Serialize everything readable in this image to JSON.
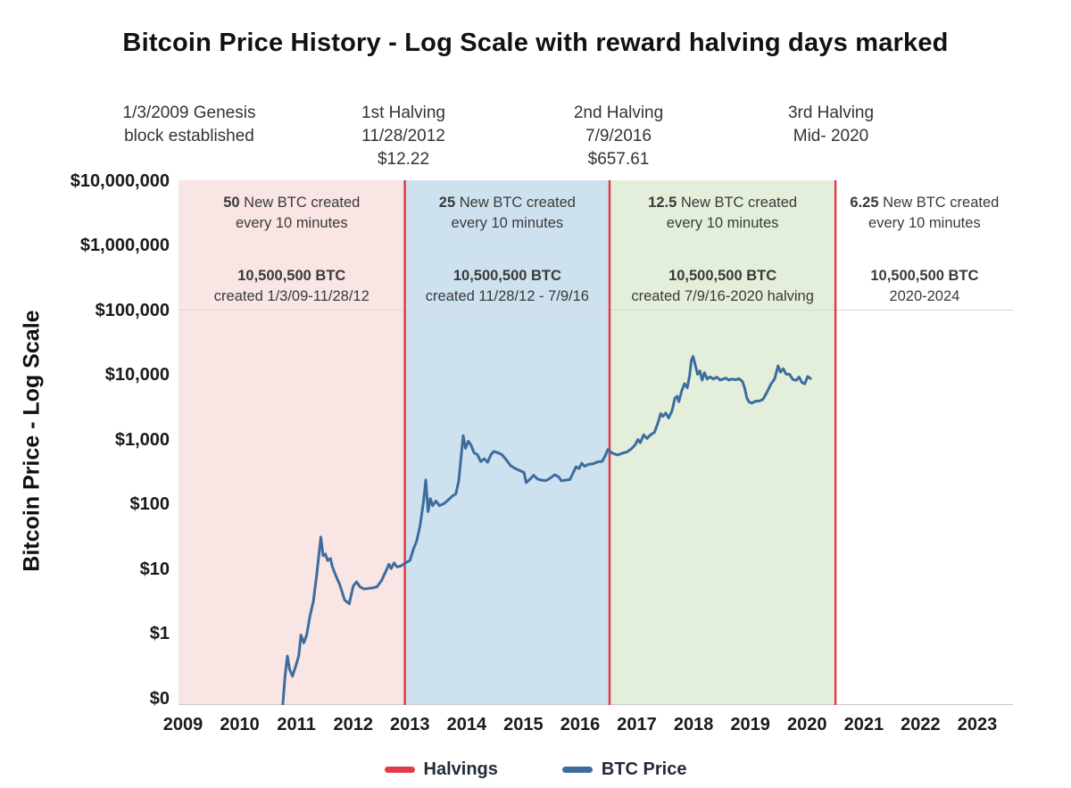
{
  "title": "Bitcoin Price History - Log Scale with reward halving days marked",
  "y_axis_title": "Bitcoin Price - Log Scale",
  "annotations": [
    {
      "text": "1/3/2009 Genesis\nblock established"
    },
    {
      "text": "1st Halving\n11/28/2012\n$12.22"
    },
    {
      "text": "2nd Halving\n7/9/2016\n$657.61"
    },
    {
      "text": "3rd Halving\nMid- 2020"
    }
  ],
  "legend": [
    {
      "label": "Halvings",
      "color": "#e23b48",
      "type": "line"
    },
    {
      "label": "BTC Price",
      "color": "#3d6d9e",
      "type": "line"
    }
  ],
  "chart_data": {
    "type": "line",
    "title": "Bitcoin Price History - Log Scale with reward halving days marked",
    "xlabel": "",
    "ylabel": "Bitcoin Price - Log Scale",
    "y_scale": "log",
    "x_range": [
      2008.92,
      2023.63
    ],
    "y_range": [
      0.1,
      10000000
    ],
    "grid": "minimal",
    "legend_position": "bottom",
    "x_ticks": [
      2009,
      2010,
      2011,
      2012,
      2013,
      2014,
      2015,
      2016,
      2017,
      2018,
      2019,
      2020,
      2021,
      2022,
      2023
    ],
    "y_ticks": [
      {
        "label": "$10,000,000",
        "value": 10000000
      },
      {
        "label": "$1,000,000",
        "value": 1000000
      },
      {
        "label": "$100,000",
        "value": 100000
      },
      {
        "label": "$10,000",
        "value": 10000
      },
      {
        "label": "$1,000",
        "value": 1000
      },
      {
        "label": "$100",
        "value": 100
      },
      {
        "label": "$10",
        "value": 10
      },
      {
        "label": "$1",
        "value": 1
      },
      {
        "label": "$0",
        "value": 0.1
      }
    ],
    "halving_color": "#e23b48",
    "halvings": [
      {
        "name": "1st Halving",
        "date": "11/28/2012",
        "year": 2012.91,
        "price": "$12.22"
      },
      {
        "name": "2nd Halving",
        "date": "7/9/2016",
        "year": 2016.52,
        "price": "$657.61"
      },
      {
        "name": "3rd Halving",
        "date": "Mid- 2020",
        "year": 2020.5,
        "price": ""
      }
    ],
    "regions": [
      {
        "amount": "50",
        "supply_line1": "New BTC created",
        "supply_line2": "every 10 minutes",
        "total": "10,500,500 BTC",
        "period": "created 1/3/09-11/28/12",
        "fill": "#f8e5e4",
        "start_year": 2008.92,
        "end_year": 2012.91
      },
      {
        "amount": "25",
        "supply_line1": "New BTC created",
        "supply_line2": "every 10 minutes",
        "total": "10,500,500 BTC",
        "period": "created 11/28/12 - 7/9/16",
        "fill": "#cee1ef",
        "start_year": 2012.91,
        "end_year": 2016.52
      },
      {
        "amount": "12.5",
        "supply_line1": "New BTC created",
        "supply_line2": "every 10 minutes",
        "total": "10,500,500 BTC",
        "period": "created 7/9/16-2020 halving",
        "fill": "#e3efdb",
        "start_year": 2016.52,
        "end_year": 2020.5
      },
      {
        "amount": "6.25",
        "supply_line1": "New BTC created",
        "supply_line2": "every 10 minutes",
        "total": "10,500,500 BTC",
        "period": "2020-2024",
        "fill": "#ffffff",
        "start_year": 2020.5,
        "end_year": 2023.63
      }
    ],
    "series": [
      {
        "name": "BTC Price",
        "color": "#3d6d9e",
        "points": [
          [
            2010.76,
            0.08
          ],
          [
            2010.8,
            0.22
          ],
          [
            2010.84,
            0.45
          ],
          [
            2010.88,
            0.28
          ],
          [
            2010.93,
            0.22
          ],
          [
            2010.98,
            0.3
          ],
          [
            2011.04,
            0.45
          ],
          [
            2011.08,
            0.95
          ],
          [
            2011.13,
            0.72
          ],
          [
            2011.18,
            0.95
          ],
          [
            2011.24,
            1.9
          ],
          [
            2011.3,
            3.2
          ],
          [
            2011.36,
            8.5
          ],
          [
            2011.43,
            31
          ],
          [
            2011.47,
            16
          ],
          [
            2011.51,
            17
          ],
          [
            2011.55,
            13.5
          ],
          [
            2011.6,
            14.5
          ],
          [
            2011.63,
            11
          ],
          [
            2011.69,
            8
          ],
          [
            2011.76,
            5.8
          ],
          [
            2011.85,
            3.3
          ],
          [
            2011.93,
            2.9
          ],
          [
            2012.0,
            5.4
          ],
          [
            2012.06,
            6.3
          ],
          [
            2012.12,
            5.3
          ],
          [
            2012.19,
            4.9
          ],
          [
            2012.27,
            5
          ],
          [
            2012.35,
            5.1
          ],
          [
            2012.42,
            5.3
          ],
          [
            2012.5,
            6.6
          ],
          [
            2012.58,
            9.4
          ],
          [
            2012.63,
            11.8
          ],
          [
            2012.67,
            10.1
          ],
          [
            2012.72,
            12.4
          ],
          [
            2012.77,
            10.8
          ],
          [
            2012.83,
            11
          ],
          [
            2012.91,
            12.22
          ],
          [
            2013.0,
            13.5
          ],
          [
            2013.06,
            20
          ],
          [
            2013.12,
            27
          ],
          [
            2013.18,
            47
          ],
          [
            2013.24,
            110
          ],
          [
            2013.28,
            237
          ],
          [
            2013.32,
            77
          ],
          [
            2013.36,
            122
          ],
          [
            2013.4,
            95
          ],
          [
            2013.46,
            112
          ],
          [
            2013.52,
            95
          ],
          [
            2013.6,
            102
          ],
          [
            2013.67,
            115
          ],
          [
            2013.74,
            132
          ],
          [
            2013.81,
            145
          ],
          [
            2013.86,
            230
          ],
          [
            2013.9,
            520
          ],
          [
            2013.94,
            1150
          ],
          [
            2013.98,
            730
          ],
          [
            2014.03,
            940
          ],
          [
            2014.08,
            810
          ],
          [
            2014.13,
            625
          ],
          [
            2014.19,
            585
          ],
          [
            2014.25,
            455
          ],
          [
            2014.31,
            505
          ],
          [
            2014.37,
            445
          ],
          [
            2014.43,
            590
          ],
          [
            2014.48,
            655
          ],
          [
            2014.55,
            625
          ],
          [
            2014.62,
            585
          ],
          [
            2014.7,
            485
          ],
          [
            2014.78,
            390
          ],
          [
            2014.86,
            355
          ],
          [
            2014.94,
            330
          ],
          [
            2015.01,
            310
          ],
          [
            2015.05,
            215
          ],
          [
            2015.12,
            245
          ],
          [
            2015.18,
            280
          ],
          [
            2015.25,
            245
          ],
          [
            2015.32,
            235
          ],
          [
            2015.4,
            232
          ],
          [
            2015.48,
            255
          ],
          [
            2015.55,
            285
          ],
          [
            2015.62,
            265
          ],
          [
            2015.67,
            230
          ],
          [
            2015.74,
            236
          ],
          [
            2015.82,
            240
          ],
          [
            2015.88,
            310
          ],
          [
            2015.93,
            380
          ],
          [
            2015.98,
            355
          ],
          [
            2016.03,
            430
          ],
          [
            2016.08,
            385
          ],
          [
            2016.15,
            415
          ],
          [
            2016.23,
            420
          ],
          [
            2016.31,
            452
          ],
          [
            2016.39,
            460
          ],
          [
            2016.45,
            580
          ],
          [
            2016.49,
            700
          ],
          [
            2016.52,
            657.61
          ],
          [
            2016.58,
            608
          ],
          [
            2016.66,
            578
          ],
          [
            2016.74,
            612
          ],
          [
            2016.82,
            640
          ],
          [
            2016.9,
            715
          ],
          [
            2016.97,
            830
          ],
          [
            2017.02,
            1000
          ],
          [
            2017.06,
            890
          ],
          [
            2017.12,
            1180
          ],
          [
            2017.18,
            1040
          ],
          [
            2017.24,
            1180
          ],
          [
            2017.31,
            1290
          ],
          [
            2017.37,
            1800
          ],
          [
            2017.42,
            2520
          ],
          [
            2017.46,
            2280
          ],
          [
            2017.51,
            2560
          ],
          [
            2017.56,
            2150
          ],
          [
            2017.62,
            2800
          ],
          [
            2017.67,
            4350
          ],
          [
            2017.71,
            4650
          ],
          [
            2017.74,
            3850
          ],
          [
            2017.79,
            5650
          ],
          [
            2017.84,
            7300
          ],
          [
            2017.89,
            6300
          ],
          [
            2017.93,
            9800
          ],
          [
            2017.96,
            16600
          ],
          [
            2017.99,
            19300
          ],
          [
            2018.03,
            14200
          ],
          [
            2018.07,
            10200
          ],
          [
            2018.11,
            11500
          ],
          [
            2018.15,
            8300
          ],
          [
            2018.19,
            10800
          ],
          [
            2018.24,
            8600
          ],
          [
            2018.29,
            9300
          ],
          [
            2018.35,
            8600
          ],
          [
            2018.41,
            9200
          ],
          [
            2018.47,
            8300
          ],
          [
            2018.52,
            8600
          ],
          [
            2018.57,
            8900
          ],
          [
            2018.62,
            8300
          ],
          [
            2018.68,
            8600
          ],
          [
            2018.74,
            8400
          ],
          [
            2018.8,
            8700
          ],
          [
            2018.86,
            7900
          ],
          [
            2018.9,
            6300
          ],
          [
            2018.94,
            4350
          ],
          [
            2018.98,
            3800
          ],
          [
            2019.03,
            3650
          ],
          [
            2019.09,
            3900
          ],
          [
            2019.16,
            3950
          ],
          [
            2019.22,
            4150
          ],
          [
            2019.29,
            5300
          ],
          [
            2019.36,
            7100
          ],
          [
            2019.43,
            8700
          ],
          [
            2019.49,
            13800
          ],
          [
            2019.53,
            11000
          ],
          [
            2019.58,
            12400
          ],
          [
            2019.63,
            10300
          ],
          [
            2019.69,
            10200
          ],
          [
            2019.75,
            8450
          ],
          [
            2019.81,
            8250
          ],
          [
            2019.86,
            9250
          ],
          [
            2019.91,
            7600
          ],
          [
            2019.96,
            7250
          ],
          [
            2020.01,
            9400
          ],
          [
            2020.06,
            8750
          ]
        ]
      }
    ]
  }
}
